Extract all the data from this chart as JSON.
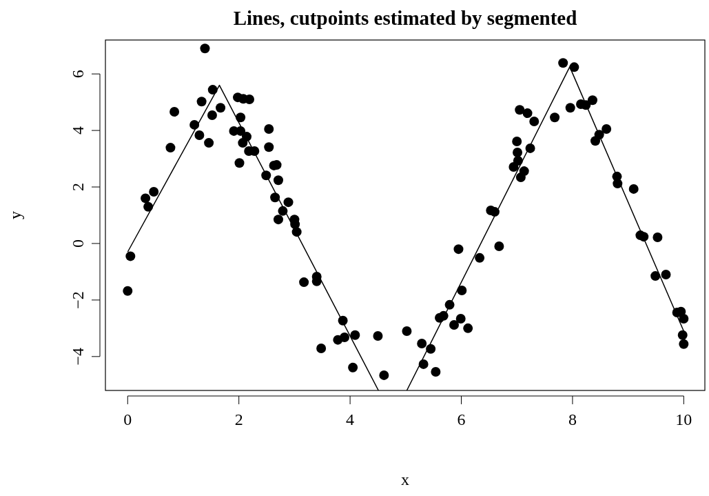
{
  "chart_data": {
    "type": "scatter",
    "title": "Lines, cutpoints estimated by segmented",
    "xlabel": "x",
    "ylabel": "y",
    "xlim": [
      -0.4,
      10.38
    ],
    "ylim": [
      -5.2,
      7.2
    ],
    "xticks": [
      0,
      2,
      4,
      6,
      8,
      10
    ],
    "yticks": [
      {
        "value": -4,
        "label": "−4"
      },
      {
        "value": -2,
        "label": "−2"
      },
      0,
      2,
      4,
      6
    ],
    "grid": false,
    "line_style": "solid",
    "series": [
      {
        "marker": "circle",
        "color": "#000000",
        "x": [
          0.0,
          0.05,
          0.32,
          0.37,
          0.47,
          0.77,
          0.84,
          1.2,
          1.29,
          1.33,
          1.39,
          1.46,
          1.52,
          1.53,
          1.67,
          1.91,
          1.98,
          2.03,
          2.01,
          2.03,
          2.07,
          2.08,
          2.14,
          2.19,
          2.18,
          2.28,
          2.49,
          2.54,
          2.54,
          2.63,
          2.68,
          2.65,
          2.71,
          2.71,
          2.79,
          2.89,
          3.0,
          3.01,
          3.04,
          3.17,
          3.4,
          3.4,
          3.48,
          3.78,
          3.87,
          3.9,
          4.09,
          4.05,
          4.5,
          4.61,
          5.02,
          5.29,
          5.32,
          5.45,
          5.54,
          5.61,
          5.68,
          5.79,
          5.87,
          5.95,
          5.99,
          6.01,
          6.12,
          6.33,
          6.53,
          6.6,
          6.68,
          6.94,
          7.0,
          7.01,
          7.02,
          7.05,
          7.07,
          7.13,
          7.19,
          7.24,
          7.31,
          7.68,
          7.83,
          7.96,
          8.03,
          8.15,
          8.24,
          8.36,
          8.41,
          8.48,
          8.61,
          8.8,
          8.81,
          9.1,
          9.22,
          9.28,
          9.53,
          9.49,
          9.68,
          9.88,
          9.95,
          10.0,
          9.98,
          10.0
        ],
        "values": [
          -1.68,
          -0.45,
          1.6,
          1.3,
          1.83,
          3.39,
          4.66,
          4.2,
          3.83,
          5.02,
          6.9,
          3.56,
          4.54,
          5.44,
          4.8,
          3.98,
          5.17,
          4.46,
          2.85,
          3.98,
          3.56,
          5.12,
          3.78,
          5.1,
          3.27,
          3.27,
          2.41,
          4.05,
          3.41,
          2.76,
          2.78,
          1.63,
          2.24,
          0.85,
          1.15,
          1.46,
          0.85,
          0.68,
          0.41,
          -1.37,
          -1.17,
          -1.34,
          -3.71,
          -3.41,
          -2.73,
          -3.32,
          -3.24,
          -4.39,
          -3.27,
          -4.66,
          -3.1,
          -3.54,
          -4.27,
          -3.73,
          -4.54,
          -2.63,
          -2.56,
          -2.17,
          -2.88,
          -0.2,
          -2.66,
          -1.66,
          -3.0,
          -0.51,
          1.17,
          1.12,
          -0.1,
          2.71,
          3.61,
          3.22,
          2.93,
          4.73,
          2.34,
          2.56,
          4.61,
          3.37,
          4.32,
          4.46,
          6.39,
          4.8,
          6.24,
          4.93,
          4.9,
          5.07,
          3.63,
          3.85,
          4.05,
          2.37,
          2.12,
          1.93,
          0.29,
          0.24,
          0.22,
          -1.15,
          -1.1,
          -2.44,
          -2.41,
          -2.66,
          -3.24,
          -3.56
        ]
      },
      {
        "type": "line",
        "color": "#000000",
        "x": [
          0,
          1.65,
          4.51
        ],
        "values": [
          -0.3,
          5.6,
          -5.2
        ]
      },
      {
        "type": "line",
        "color": "#000000",
        "x": [
          5.02,
          7.95,
          10
        ],
        "values": [
          -5.2,
          6.25,
          -3.1
        ]
      }
    ]
  }
}
